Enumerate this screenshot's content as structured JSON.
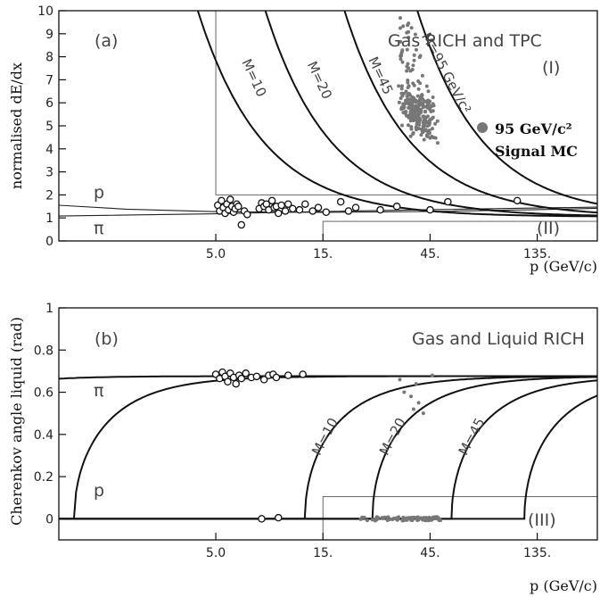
{
  "chart_data": [
    {
      "type": "scatter",
      "panel_label": "(a)",
      "title": "Gas RICH and TPC",
      "xlabel": "p (GeV/c)",
      "ylabel": "normalised dE/dx",
      "xscale": "log",
      "xlim": [
        1.0,
        250.0
      ],
      "ylim": [
        0,
        10
      ],
      "yticks": [
        0,
        1,
        2,
        3,
        4,
        5,
        6,
        7,
        8,
        9,
        10
      ],
      "xticks": [
        5.0,
        15.0,
        45.0,
        135.0
      ],
      "xtick_labels": [
        "5.0",
        "15.",
        "45.",
        "135."
      ],
      "region_labels": [
        {
          "text": "(I)",
          "x": 190.0,
          "y": 7.7
        },
        {
          "text": "(II)",
          "x": 180.0,
          "y": 0.55
        }
      ],
      "particle_labels": [
        {
          "text": "p",
          "x": 1.6,
          "y": 2.15
        },
        {
          "text": "π",
          "x": 1.6,
          "y": 0.55
        }
      ],
      "legend": {
        "marker": "filled-circle",
        "line1": "95 GeV/c²",
        "line2": "Signal MC"
      },
      "mass_curves": [
        {
          "label": "M=10",
          "mass": 10
        },
        {
          "label": "M=20",
          "mass": 20
        },
        {
          "label": "M=45",
          "mass": 45
        },
        {
          "label": "M=95 GeV/c²",
          "mass": 95
        }
      ],
      "band_curves": [
        {
          "name": "p",
          "points": [
            [
              1.0,
              1.55
            ],
            [
              2.0,
              1.38
            ],
            [
              5.0,
              1.27
            ],
            [
              15.0,
              1.24
            ],
            [
              45.0,
              1.28
            ],
            [
              135.0,
              1.36
            ],
            [
              250.0,
              1.42
            ]
          ]
        },
        {
          "name": "π",
          "points": [
            [
              1.0,
              1.08
            ],
            [
              5.0,
              1.18
            ],
            [
              15.0,
              1.28
            ],
            [
              45.0,
              1.36
            ],
            [
              135.0,
              1.43
            ],
            [
              250.0,
              1.47
            ]
          ]
        }
      ],
      "cut_boxes": [
        {
          "name": "(I)",
          "xmin": 5.0,
          "xmax": 250.0,
          "ymin": 2.0,
          "ymax": 10.0
        },
        {
          "name": "(II)",
          "xmin": 15.0,
          "xmax": 250.0,
          "ymin": 0.0,
          "ymax": 0.85
        }
      ],
      "data_points": [
        [
          5.1,
          1.55
        ],
        [
          5.2,
          1.3
        ],
        [
          5.3,
          1.75
        ],
        [
          5.4,
          1.45
        ],
        [
          5.5,
          1.2
        ],
        [
          5.6,
          1.6
        ],
        [
          5.7,
          1.35
        ],
        [
          5.8,
          1.8
        ],
        [
          5.9,
          1.5
        ],
        [
          6.0,
          1.25
        ],
        [
          6.1,
          1.4
        ],
        [
          6.2,
          1.6
        ],
        [
          6.3,
          1.5
        ],
        [
          6.5,
          0.7
        ],
        [
          6.7,
          1.3
        ],
        [
          6.9,
          1.15
        ],
        [
          7.8,
          1.4
        ],
        [
          8.0,
          1.65
        ],
        [
          8.2,
          1.5
        ],
        [
          8.4,
          1.6
        ],
        [
          8.6,
          1.35
        ],
        [
          8.9,
          1.75
        ],
        [
          9.1,
          1.45
        ],
        [
          9.3,
          1.5
        ],
        [
          9.5,
          1.2
        ],
        [
          9.8,
          1.55
        ],
        [
          10.2,
          1.3
        ],
        [
          10.5,
          1.6
        ],
        [
          11.0,
          1.4
        ],
        [
          11.8,
          1.35
        ],
        [
          12.5,
          1.6
        ],
        [
          13.5,
          1.3
        ],
        [
          14.3,
          1.45
        ],
        [
          15.5,
          1.25
        ],
        [
          18.0,
          1.7
        ],
        [
          19.5,
          1.3
        ],
        [
          21.0,
          1.45
        ],
        [
          27.0,
          1.35
        ],
        [
          32.0,
          1.5
        ],
        [
          45.0,
          1.35
        ],
        [
          54.0,
          1.7
        ],
        [
          110.0,
          1.75
        ]
      ],
      "signal_mc_cloud": {
        "x_range": [
          33.0,
          50.0
        ],
        "y_range": [
          4.2,
          10.0
        ],
        "center": [
          40.0,
          5.5
        ]
      }
    },
    {
      "type": "scatter",
      "panel_label": "(b)",
      "title": "Gas and Liquid RICH",
      "xlabel": "p (GeV/c)",
      "ylabel": "Cherenkov angle liquid (rad)",
      "xscale": "log",
      "xlim": [
        1.0,
        250.0
      ],
      "ylim": [
        -0.1,
        1.0
      ],
      "yticks": [
        0,
        0.2,
        0.4,
        0.6,
        0.8,
        1.0
      ],
      "ytick_labels": [
        "0",
        "0.2",
        "0.4",
        "0.6",
        "0.8",
        "1"
      ],
      "xticks": [
        5.0,
        15.0,
        45.0,
        135.0
      ],
      "xtick_labels": [
        "5.0",
        "15.",
        "45.",
        "135."
      ],
      "region_labels": [
        {
          "text": "(III)",
          "x": 170.0,
          "y": -0.005
        }
      ],
      "particle_labels": [
        {
          "text": "π",
          "x": 1.6,
          "y": 0.575
        },
        {
          "text": "p",
          "x": 1.6,
          "y": 0.12
        }
      ],
      "threshold_curves": [
        {
          "name": "p",
          "mass": 0.938
        },
        {
          "label": "M=10",
          "mass": 10
        },
        {
          "label": "M=20",
          "mass": 20
        },
        {
          "label": "M=45",
          "mass": 45
        },
        {
          "label": "M=95",
          "mass": 95,
          "unlabeled": true
        }
      ],
      "cut_box": {
        "xmin": 15.0,
        "xmax": 250.0,
        "ymin": -0.1,
        "ymax": 0.105
      },
      "data_points": [
        [
          5.0,
          0.685
        ],
        [
          5.2,
          0.665
        ],
        [
          5.35,
          0.695
        ],
        [
          5.5,
          0.675
        ],
        [
          5.65,
          0.65
        ],
        [
          5.8,
          0.69
        ],
        [
          6.0,
          0.67
        ],
        [
          6.15,
          0.64
        ],
        [
          6.35,
          0.68
        ],
        [
          6.5,
          0.665
        ],
        [
          6.8,
          0.69
        ],
        [
          7.2,
          0.67
        ],
        [
          7.6,
          0.675
        ],
        [
          8.2,
          0.66
        ],
        [
          8.6,
          0.68
        ],
        [
          9.0,
          0.685
        ],
        [
          9.3,
          0.67
        ],
        [
          10.5,
          0.68
        ],
        [
          12.2,
          0.685
        ],
        [
          8.0,
          0.0
        ],
        [
          9.5,
          0.005
        ]
      ],
      "signal_mc_points": [
        [
          33.0,
          0.66
        ],
        [
          34.5,
          0.6
        ],
        [
          37.0,
          0.58
        ],
        [
          38.0,
          0.52
        ],
        [
          39.0,
          0.64
        ],
        [
          40.0,
          0.55
        ],
        [
          42.0,
          0.5
        ],
        [
          46.0,
          0.68
        ]
      ],
      "signal_mc_baseline": {
        "x_range": [
          20.0,
          50.0
        ],
        "y": 0.0
      }
    }
  ]
}
